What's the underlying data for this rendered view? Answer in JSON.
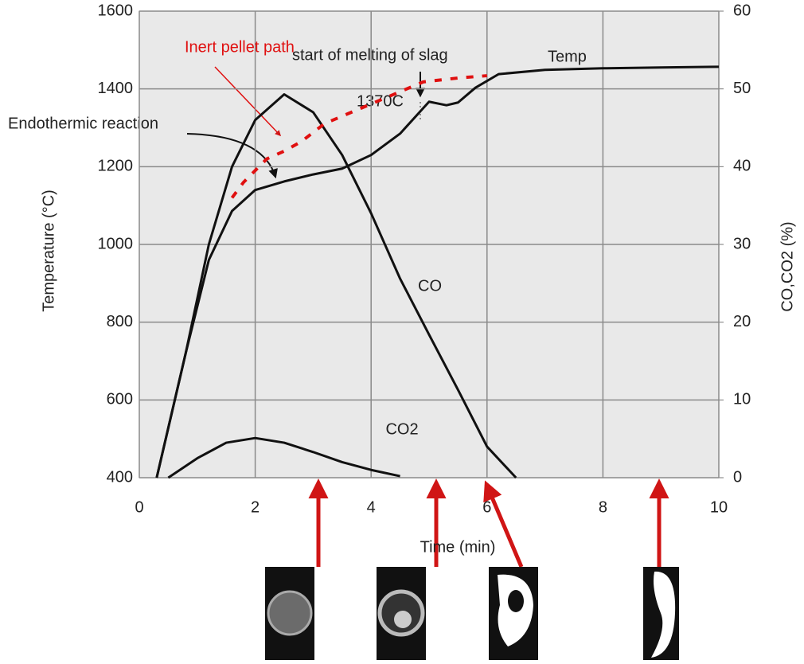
{
  "chart_data": {
    "type": "line",
    "x_label": "Time (min)",
    "y_label": "Temperature (°C)",
    "y2_label": "CO,CO2 (%)",
    "xlim": [
      0,
      10
    ],
    "xticks": [
      0,
      2,
      4,
      6,
      8,
      10
    ],
    "ylim": [
      400,
      1600
    ],
    "yticks": [
      400,
      600,
      800,
      1000,
      1200,
      1400,
      1600
    ],
    "y2lim": [
      0,
      60
    ],
    "y2ticks": [
      0,
      10,
      20,
      30,
      40,
      50,
      60
    ],
    "grid": true,
    "series": [
      {
        "name": "Temp",
        "color": "#111111",
        "style": "solid",
        "x": [
          0.3,
          0.8,
          1.2,
          1.6,
          2.0,
          2.5,
          3.0,
          3.5,
          4.0,
          4.5,
          5.0,
          5.3,
          5.5,
          5.8,
          6.2,
          7.0,
          8.0,
          9.0,
          10.0
        ],
        "values": [
          400,
          720,
          960,
          1086,
          1140,
          1162,
          1180,
          1195,
          1230,
          1285,
          1367,
          1358,
          1365,
          1403,
          1438,
          1449,
          1453,
          1455,
          1457
        ]
      },
      {
        "name": "CO",
        "color": "#111111",
        "style": "solid",
        "axis": "y2",
        "x": [
          0.3,
          0.8,
          1.2,
          1.6,
          2.0,
          2.5,
          3.0,
          3.5,
          4.0,
          4.5,
          5.0,
          5.5,
          6.0,
          6.5
        ],
        "values": [
          0,
          16,
          30,
          40,
          46,
          49.3,
          47,
          41.5,
          34,
          25.6,
          18.4,
          11.3,
          4,
          0
        ]
      },
      {
        "name": "CO2",
        "color": "#111111",
        "style": "solid",
        "axis": "y2",
        "x": [
          0.5,
          1.0,
          1.5,
          2.0,
          2.5,
          3.0,
          3.5,
          4.0,
          4.5
        ],
        "values": [
          0,
          2.5,
          4.5,
          5.1,
          4.5,
          3.3,
          2,
          1,
          0.2
        ]
      },
      {
        "name": "Inert pellet path",
        "color": "#e01010",
        "style": "dashed",
        "x": [
          1.6,
          1.8,
          2.0,
          2.2,
          2.5,
          2.8,
          3.2,
          4.9,
          5.5,
          6.0
        ],
        "values": [
          1120,
          1160,
          1190,
          1220,
          1240,
          1265,
          1311,
          1418,
          1428,
          1434
        ]
      }
    ],
    "annotations": [
      "start of melting of slag",
      "1370C",
      "Endothermic reaction"
    ]
  }
}
